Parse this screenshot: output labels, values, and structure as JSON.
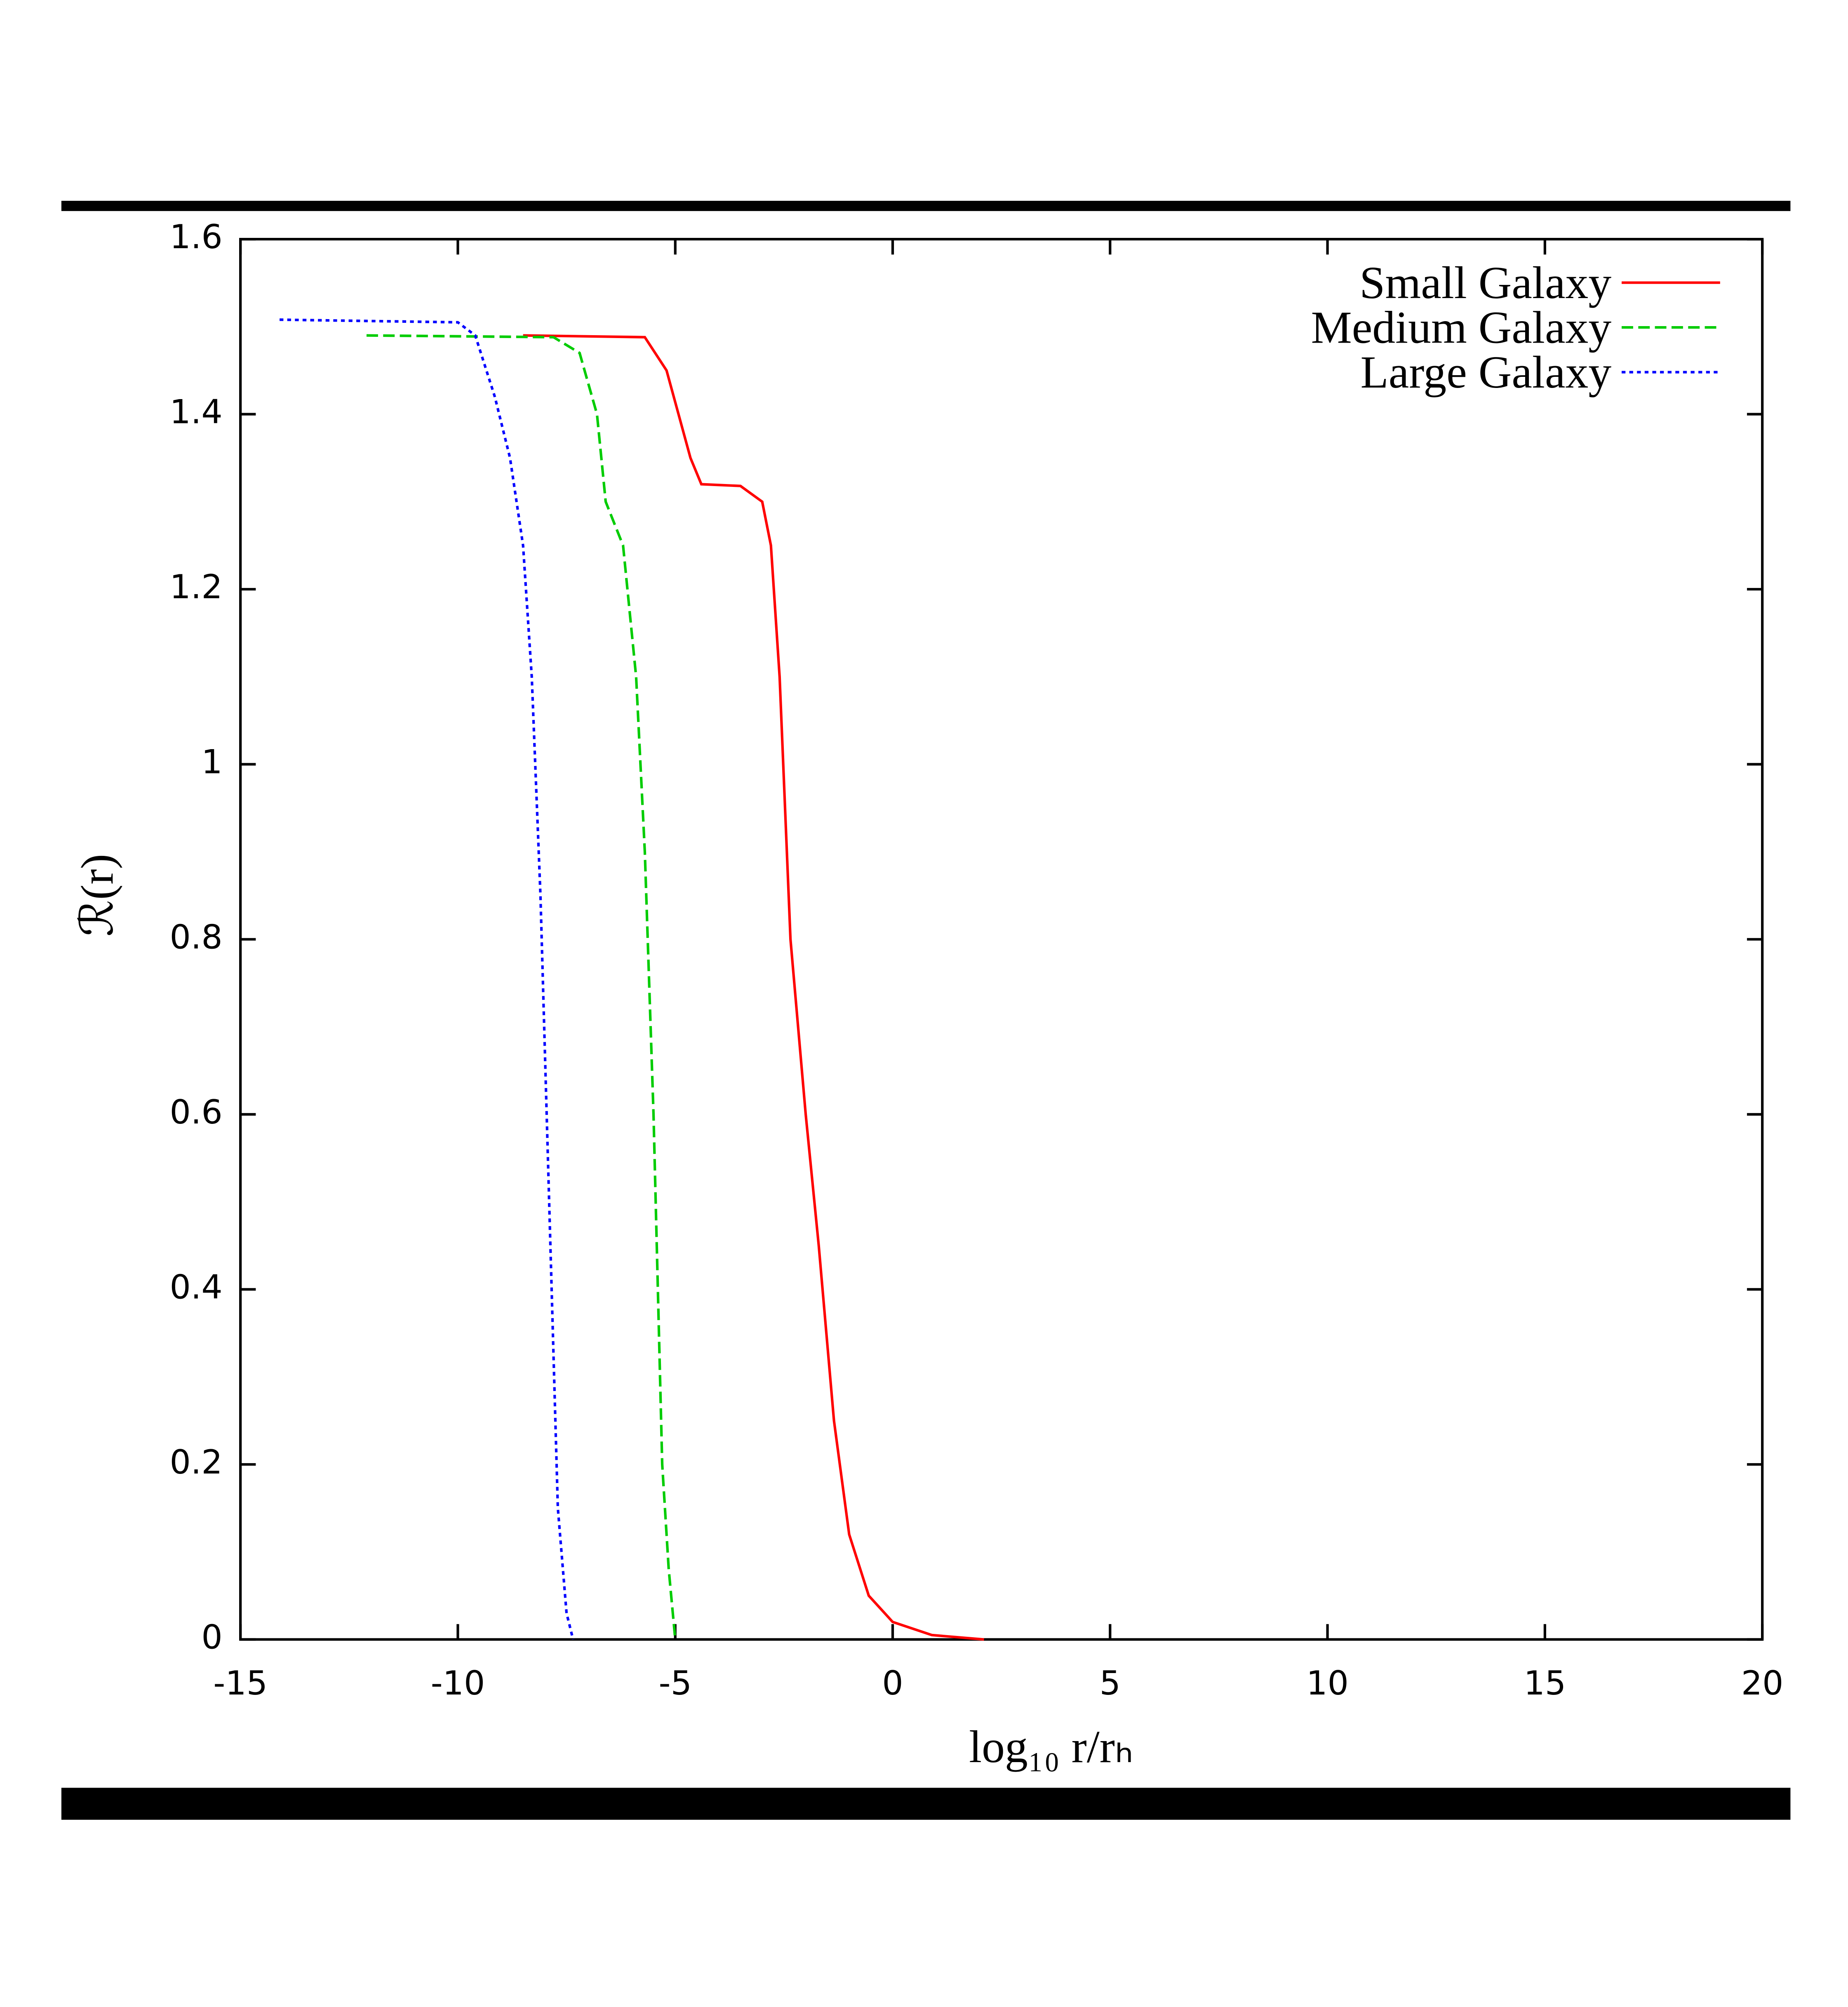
{
  "chart_data": {
    "type": "line",
    "x_label": "log₁₀ r/rₕ",
    "y_label": "ℛ(r)",
    "xlim": [
      -15,
      20
    ],
    "xticks": [
      -15,
      -10,
      -5,
      0,
      5,
      10,
      15,
      20
    ],
    "ylim": [
      0,
      1.6
    ],
    "yticks": [
      0,
      0.2,
      0.4,
      0.6,
      0.8,
      1,
      1.2,
      1.4,
      1.6
    ],
    "legend": "top-right",
    "series": [
      {
        "name": "Small Galaxy",
        "color": "#ff0000",
        "dash": "solid",
        "x": [
          -8.5,
          -5.7,
          -5.2,
          -4.65,
          -4.4,
          -3.5,
          -3.0,
          -2.8,
          -2.6,
          -2.35,
          -2.0,
          -1.7,
          -1.35,
          -1.0,
          -0.55,
          0,
          0.9,
          2.1
        ],
        "values": [
          1.49,
          1.488,
          1.45,
          1.35,
          1.32,
          1.318,
          1.3,
          1.25,
          1.1,
          0.8,
          0.6,
          0.45,
          0.25,
          0.12,
          0.05,
          0.02,
          0.005,
          0
        ]
      },
      {
        "name": "Medium Galaxy",
        "color": "#00cc00",
        "dash": "dashed",
        "x": [
          -12.1,
          -7.8,
          -7.2,
          -6.8,
          -6.6,
          -6.2,
          -5.9,
          -5.7,
          -5.5,
          -5.3,
          -5.15,
          -5.0
        ],
        "values": [
          1.49,
          1.488,
          1.47,
          1.4,
          1.3,
          1.25,
          1.1,
          0.9,
          0.6,
          0.2,
          0.08,
          0
        ]
      },
      {
        "name": "Large Galaxy",
        "color": "#0000ff",
        "dash": "dotted",
        "x": [
          -14.1,
          -10,
          -9.6,
          -9.15,
          -8.8,
          -8.5,
          -8.3,
          -8.1,
          -7.9,
          -7.7,
          -7.5,
          -7.35
        ],
        "values": [
          1.508,
          1.505,
          1.49,
          1.42,
          1.35,
          1.25,
          1.1,
          0.85,
          0.5,
          0.15,
          0.03,
          0
        ]
      }
    ]
  }
}
